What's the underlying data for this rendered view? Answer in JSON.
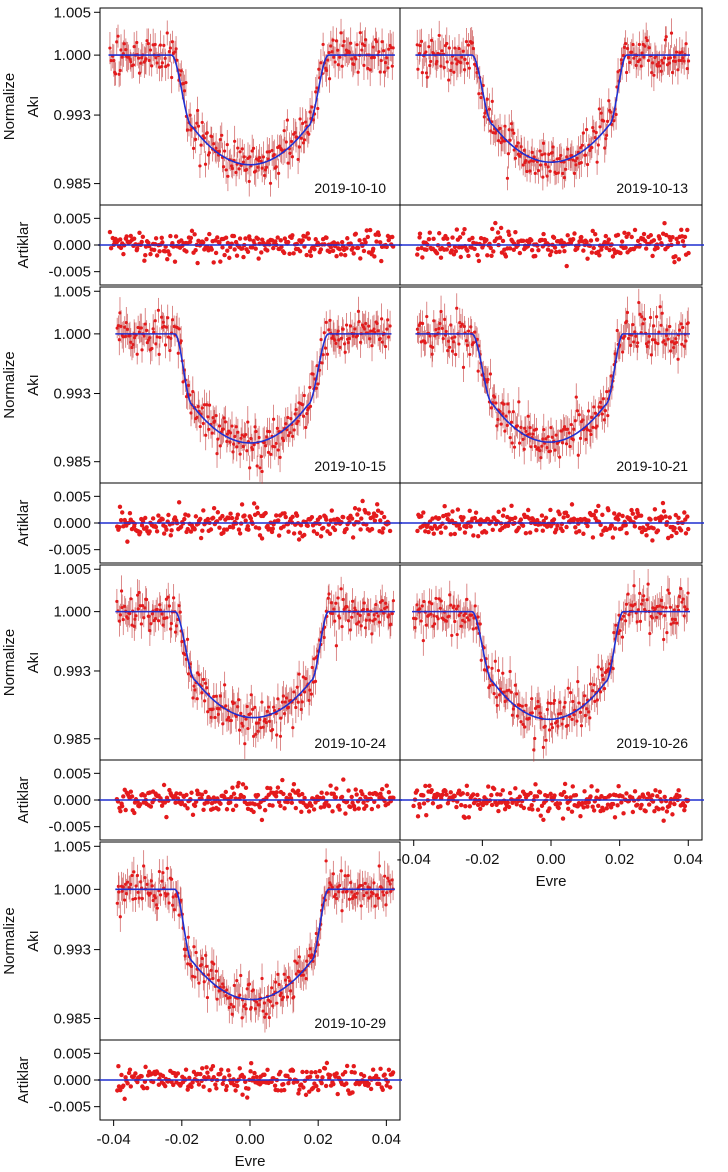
{
  "figure": {
    "ylabel_flux_line1": "Normalize",
    "ylabel_flux_line2": "Akı",
    "ylabel_resid": "Artiklar",
    "xlabel": "Evre",
    "colors": {
      "data": "#e41a1c",
      "model": "#1f2fd0",
      "errorbar": "#c43c3c"
    }
  },
  "chart_data": [
    {
      "type": "scatter",
      "title": "2019-10-10",
      "xlabel": "",
      "ylabel": "Normalize Akı / Artiklar",
      "xlim": [
        -0.044,
        0.044
      ],
      "flux_ylim": [
        0.9825,
        1.0055
      ],
      "flux_yticks": [
        "1.005",
        "1.000",
        "0.993",
        "0.985"
      ],
      "resid_ylim": [
        -0.0075,
        0.0075
      ],
      "resid_yticks": [
        "0.005",
        "0.000",
        "-0.005"
      ],
      "xticks": [],
      "phase_range": [
        -0.041,
        0.042
      ],
      "transit": {
        "first_contact": -0.023,
        "second_contact": -0.017,
        "third_contact": 0.017,
        "fourth_contact": 0.023,
        "depth": 0.0128,
        "limb_darkening": 0.35
      },
      "flux_scatter": 0.0012,
      "resid_scatter": 0.0013,
      "n_points": 260
    },
    {
      "type": "scatter",
      "title": "2019-10-13",
      "xlabel": "",
      "ylabel": "",
      "xlim": [
        -0.044,
        0.044
      ],
      "flux_ylim": [
        0.9825,
        1.0055
      ],
      "flux_yticks": [],
      "resid_ylim": [
        -0.0075,
        0.0075
      ],
      "resid_yticks": [],
      "xticks": [],
      "phase_range": [
        -0.039,
        0.04
      ],
      "transit": {
        "first_contact": -0.023,
        "second_contact": -0.017,
        "third_contact": 0.017,
        "fourth_contact": 0.022,
        "depth": 0.0125,
        "limb_darkening": 0.35
      },
      "flux_scatter": 0.0012,
      "resid_scatter": 0.0013,
      "n_points": 260
    },
    {
      "type": "scatter",
      "title": "2019-10-15",
      "xlabel": "",
      "ylabel": "Normalize Akı / Artiklar",
      "xlim": [
        -0.044,
        0.044
      ],
      "flux_ylim": [
        0.9825,
        1.0055
      ],
      "flux_yticks": [
        "1.005",
        "1.000",
        "0.993",
        "0.985"
      ],
      "resid_ylim": [
        -0.0075,
        0.0075
      ],
      "resid_yticks": [
        "0.005",
        "0.000",
        "-0.005"
      ],
      "xticks": [],
      "phase_range": [
        -0.039,
        0.041
      ],
      "transit": {
        "first_contact": -0.022,
        "second_contact": -0.017,
        "third_contact": 0.017,
        "fourth_contact": 0.023,
        "depth": 0.0128,
        "limb_darkening": 0.35
      },
      "flux_scatter": 0.0012,
      "resid_scatter": 0.0013,
      "n_points": 260
    },
    {
      "type": "scatter",
      "title": "2019-10-21",
      "xlabel": "",
      "ylabel": "",
      "xlim": [
        -0.044,
        0.044
      ],
      "flux_ylim": [
        0.9825,
        1.0055
      ],
      "flux_yticks": [],
      "resid_ylim": [
        -0.0075,
        0.0075
      ],
      "resid_yticks": [],
      "xticks": [],
      "phase_range": [
        -0.039,
        0.04
      ],
      "transit": {
        "first_contact": -0.023,
        "second_contact": -0.017,
        "third_contact": 0.016,
        "fourth_contact": 0.021,
        "depth": 0.0127,
        "limb_darkening": 0.35
      },
      "flux_scatter": 0.0013,
      "resid_scatter": 0.0013,
      "n_points": 260
    },
    {
      "type": "scatter",
      "title": "2019-10-24",
      "xlabel": "",
      "ylabel": "Normalize Akı / Artiklar",
      "xlim": [
        -0.044,
        0.044
      ],
      "flux_ylim": [
        0.9825,
        1.0055
      ],
      "flux_yticks": [
        "1.005",
        "1.000",
        "0.993",
        "0.985"
      ],
      "resid_ylim": [
        -0.0075,
        0.0075
      ],
      "resid_yticks": [
        "0.005",
        "0.000",
        "-0.005"
      ],
      "xticks": [],
      "phase_range": [
        -0.039,
        0.042
      ],
      "transit": {
        "first_contact": -0.022,
        "second_contact": -0.016,
        "third_contact": 0.018,
        "fourth_contact": 0.023,
        "depth": 0.0125,
        "limb_darkening": 0.35
      },
      "flux_scatter": 0.0012,
      "resid_scatter": 0.0013,
      "n_points": 260
    },
    {
      "type": "scatter",
      "title": "2019-10-26",
      "xlabel": "Evre",
      "ylabel": "",
      "xlim": [
        -0.044,
        0.044
      ],
      "flux_ylim": [
        0.9825,
        1.0055
      ],
      "flux_yticks": [],
      "resid_ylim": [
        -0.0075,
        0.0075
      ],
      "resid_yticks": [],
      "xticks": [
        "-0.04",
        "-0.02",
        "0.00",
        "0.02",
        "0.04"
      ],
      "phase_range": [
        -0.04,
        0.04
      ],
      "transit": {
        "first_contact": -0.023,
        "second_contact": -0.017,
        "third_contact": 0.016,
        "fourth_contact": 0.021,
        "depth": 0.0127,
        "limb_darkening": 0.35
      },
      "flux_scatter": 0.0013,
      "resid_scatter": 0.0013,
      "n_points": 260
    },
    {
      "type": "scatter",
      "title": "2019-10-29",
      "xlabel": "Evre",
      "ylabel": "Normalize Akı / Artiklar",
      "xlim": [
        -0.044,
        0.044
      ],
      "flux_ylim": [
        0.9825,
        1.0055
      ],
      "flux_yticks": [
        "1.005",
        "1.000",
        "0.993",
        "0.985"
      ],
      "resid_ylim": [
        -0.0075,
        0.0075
      ],
      "resid_yticks": [
        "0.005",
        "0.000",
        "-0.005"
      ],
      "xticks": [
        "-0.04",
        "-0.02",
        "0.00",
        "0.02",
        "0.04"
      ],
      "phase_range": [
        -0.039,
        0.042
      ],
      "transit": {
        "first_contact": -0.022,
        "second_contact": -0.017,
        "third_contact": 0.018,
        "fourth_contact": 0.023,
        "depth": 0.0128,
        "limb_darkening": 0.35
      },
      "flux_scatter": 0.0012,
      "resid_scatter": 0.0013,
      "n_points": 260
    }
  ]
}
